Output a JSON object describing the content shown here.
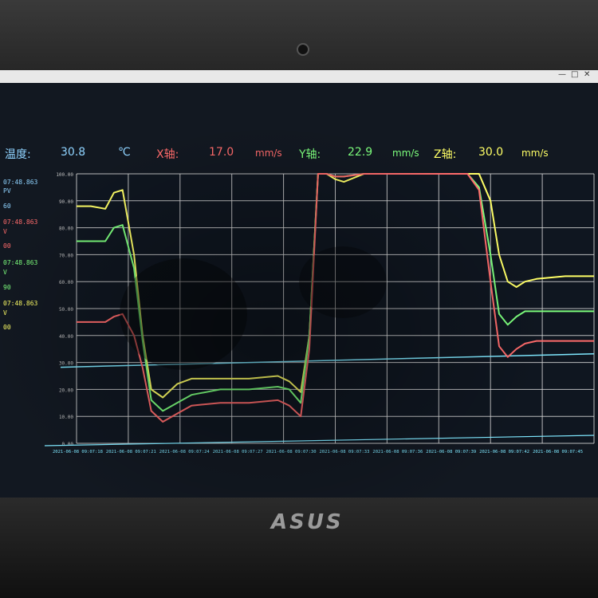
{
  "window": {
    "controls": [
      "—",
      "□",
      "✕"
    ]
  },
  "readouts": {
    "temp": {
      "label": "温度:",
      "value": "30.8",
      "unit": "℃",
      "color": "#8fd3ff"
    },
    "x": {
      "label": "X轴:",
      "value": "17.0",
      "unit": "mm/s",
      "color": "#ff6b6b"
    },
    "y": {
      "label": "Y轴:",
      "value": "22.9",
      "unit": "mm/s",
      "color": "#7dff7d"
    },
    "z": {
      "label": "Z轴:",
      "value": "30.0",
      "unit": "mm/s",
      "color": "#ffff66"
    }
  },
  "left_panel": [
    {
      "text": "07:48.863",
      "color": "#8fd3ff"
    },
    {
      "text": "PV",
      "color": "#8fd3ff"
    },
    {
      "text": "60",
      "color": "#8fd3ff"
    },
    {
      "text": "07:48.863",
      "color": "#ff6b6b"
    },
    {
      "text": "V",
      "color": "#ff6b6b"
    },
    {
      "text": "00",
      "color": "#ff6b6b"
    },
    {
      "text": "07:48.863",
      "color": "#7dff7d"
    },
    {
      "text": "V",
      "color": "#7dff7d"
    },
    {
      "text": "90",
      "color": "#7dff7d"
    },
    {
      "text": "07:48.863",
      "color": "#ffff66"
    },
    {
      "text": "V",
      "color": "#ffff66"
    },
    {
      "text": "00",
      "color": "#ffff66"
    }
  ],
  "brand": "ASUS",
  "chart_data": {
    "type": "line",
    "ylim": [
      0,
      100
    ],
    "y_ticks": [
      "0.00",
      "10.00",
      "20.00",
      "30.00",
      "40.00",
      "50.00",
      "60.00",
      "70.00",
      "80.00",
      "90.00",
      "100.00"
    ],
    "x_ticks": [
      "2021-06-08 09:07:18",
      "2021-06-08 09:07:21",
      "2021-06-08 09:07:24",
      "2021-06-08 09:07:27",
      "2021-06-08 09:07:30",
      "2021-06-08 09:07:33",
      "2021-06-08 09:07:36",
      "2021-06-08 09:07:39",
      "2021-06-08 09:07:42",
      "2021-06-08 09:07:45"
    ],
    "x": [
      0,
      0.5,
      1,
      1.3,
      1.6,
      2,
      2.3,
      2.6,
      3,
      3.5,
      4,
      5,
      6,
      7,
      7.4,
      7.8,
      8.1,
      8.4,
      8.7,
      9.0,
      9.3,
      10,
      11,
      12,
      13,
      13.6,
      14.0,
      14.4,
      14.7,
      15.0,
      15.3,
      15.6,
      16,
      17,
      18.0
    ],
    "series": [
      {
        "color": "#ffff66",
        "values": [
          88,
          88,
          87,
          93,
          94,
          70,
          40,
          20,
          17,
          22,
          24,
          24,
          24,
          25,
          23,
          19,
          40,
          100,
          100,
          98,
          97,
          100,
          100,
          100,
          100,
          100,
          100,
          90,
          70,
          60,
          58,
          60,
          61,
          62,
          62
        ]
      },
      {
        "color": "#7dff7d",
        "values": [
          75,
          75,
          75,
          80,
          81,
          65,
          38,
          16,
          12,
          15,
          18,
          20,
          20,
          21,
          20,
          15,
          40,
          100,
          100,
          99,
          99,
          100,
          100,
          100,
          100,
          100,
          95,
          70,
          48,
          44,
          47,
          49,
          49,
          49,
          49
        ]
      },
      {
        "color": "#ff6b6b",
        "values": [
          45,
          45,
          45,
          47,
          48,
          40,
          28,
          12,
          8,
          11,
          14,
          15,
          15,
          16,
          14,
          10,
          35,
          100,
          100,
          99,
          99,
          100,
          100,
          100,
          100,
          100,
          94,
          60,
          36,
          32,
          35,
          37,
          38,
          38,
          38
        ]
      }
    ],
    "reference_line": {
      "color": "#7fe8ff",
      "values_start": 30,
      "values_end": 35
    }
  }
}
